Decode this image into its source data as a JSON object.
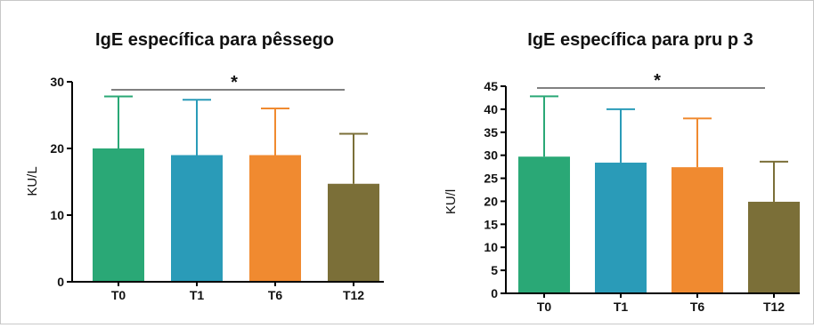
{
  "chart_data": [
    {
      "type": "bar",
      "title": "IgE específica para pêssego",
      "ylabel": "KU/L",
      "xlabel": "",
      "categories": [
        "T0",
        "T1",
        "T6",
        "T12"
      ],
      "values": [
        20.0,
        19.0,
        19.0,
        14.7
      ],
      "error_upper": [
        27.8,
        27.3,
        26.0,
        22.2
      ],
      "ylim": [
        0,
        30
      ],
      "yticks": [
        "0",
        "10",
        "20",
        "30"
      ],
      "significance": {
        "from": "T0",
        "to": "T12",
        "label": "*"
      },
      "colors": [
        "#2aa876",
        "#2a9bb8",
        "#f08a30",
        "#7b6f38"
      ],
      "grid": false
    },
    {
      "type": "bar",
      "title": "IgE específica para pru p 3",
      "ylabel": "KU/l",
      "xlabel": "",
      "categories": [
        "T0",
        "T1",
        "T6",
        "T12"
      ],
      "values": [
        29.7,
        28.4,
        27.4,
        19.9
      ],
      "error_upper": [
        42.8,
        40.0,
        38.0,
        28.6
      ],
      "ylim": [
        0,
        45
      ],
      "yticks": [
        "0",
        "5",
        "10",
        "15",
        "20",
        "25",
        "30",
        "35",
        "40",
        "45"
      ],
      "significance": {
        "from": "T0",
        "to": "T12",
        "label": "*"
      },
      "colors": [
        "#2aa876",
        "#2a9bb8",
        "#f08a30",
        "#7b6f38"
      ],
      "grid": false
    }
  ]
}
